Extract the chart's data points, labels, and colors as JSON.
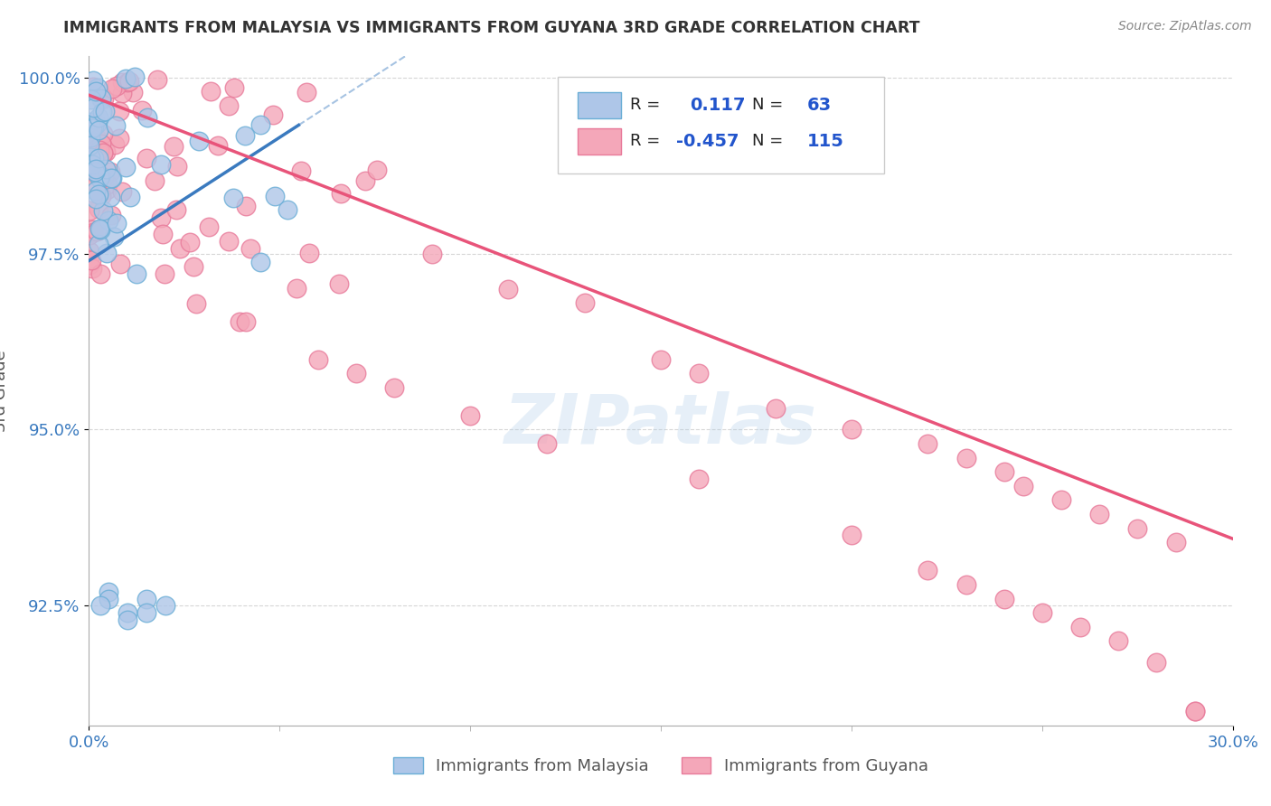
{
  "title": "IMMIGRANTS FROM MALAYSIA VS IMMIGRANTS FROM GUYANA 3RD GRADE CORRELATION CHART",
  "source": "Source: ZipAtlas.com",
  "ylabel_label": "3rd Grade",
  "xmin": 0.0,
  "xmax": 0.3,
  "ymin": 0.908,
  "ymax": 1.003,
  "malaysia_R": 0.117,
  "malaysia_N": 63,
  "guyana_R": -0.457,
  "guyana_N": 115,
  "malaysia_color": "#aec6e8",
  "guyana_color": "#f4a7b9",
  "malaysia_edge": "#6aaed6",
  "guyana_edge": "#e87a9a",
  "trend_malaysia_color": "#3a7abf",
  "trend_guyana_color": "#e8547a",
  "background": "#ffffff",
  "grid_color": "#cccccc",
  "title_color": "#333333",
  "legend_r_color": "#2255cc",
  "watermark": "ZIPatlas"
}
